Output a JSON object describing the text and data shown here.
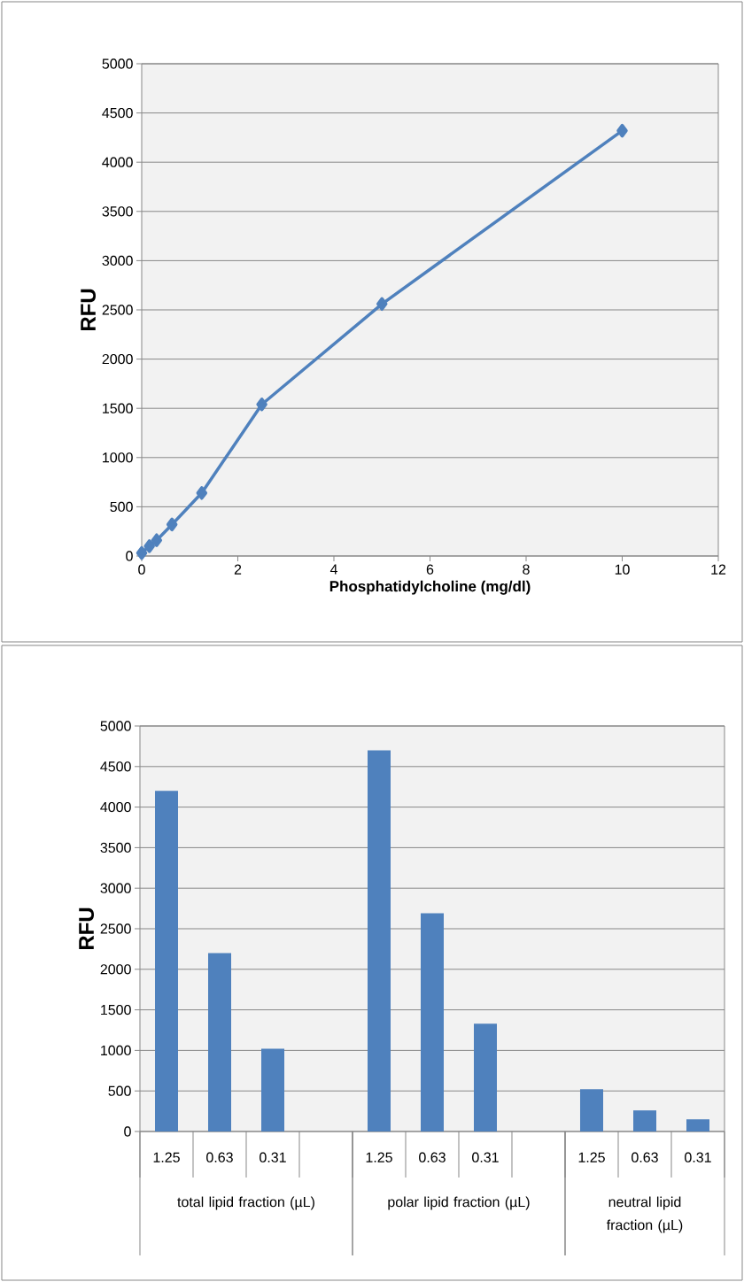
{
  "chart_data": [
    {
      "type": "line",
      "xlabel": "Phosphatidylcholine (mg/dl)",
      "ylabel": "RFU",
      "x": [
        0,
        0.16,
        0.31,
        0.63,
        1.25,
        2.5,
        5,
        10
      ],
      "values": [
        30,
        100,
        160,
        320,
        640,
        1540,
        2560,
        4320
      ],
      "color": "#4f81bd",
      "marker": "diamond",
      "xlim": [
        0,
        12
      ],
      "xticks": [
        0,
        2,
        4,
        6,
        8,
        10,
        12
      ],
      "ylim": [
        0,
        5000
      ],
      "yticks": [
        0,
        500,
        1000,
        1500,
        2000,
        2500,
        3000,
        3500,
        4000,
        4500,
        5000
      ],
      "grid": "y"
    },
    {
      "type": "bar",
      "ylabel": "RFU",
      "categories": [
        "1.25",
        "0.63",
        "0.31",
        null,
        "1.25",
        "0.63",
        "0.31",
        null,
        "1.25",
        "0.63",
        "0.31"
      ],
      "values": [
        4200,
        2200,
        1020,
        null,
        4700,
        2690,
        1330,
        null,
        520,
        260,
        150
      ],
      "color": "#4f81bd",
      "ylim": [
        0,
        5000
      ],
      "yticks": [
        0,
        500,
        1000,
        1500,
        2000,
        2500,
        3000,
        3500,
        4000,
        4500,
        5000
      ],
      "grid": "y",
      "annotations": [
        "total lipid fraction (µL)",
        "polar lipid fraction (µL)",
        "neutral lipid fraction (µL)"
      ]
    }
  ]
}
